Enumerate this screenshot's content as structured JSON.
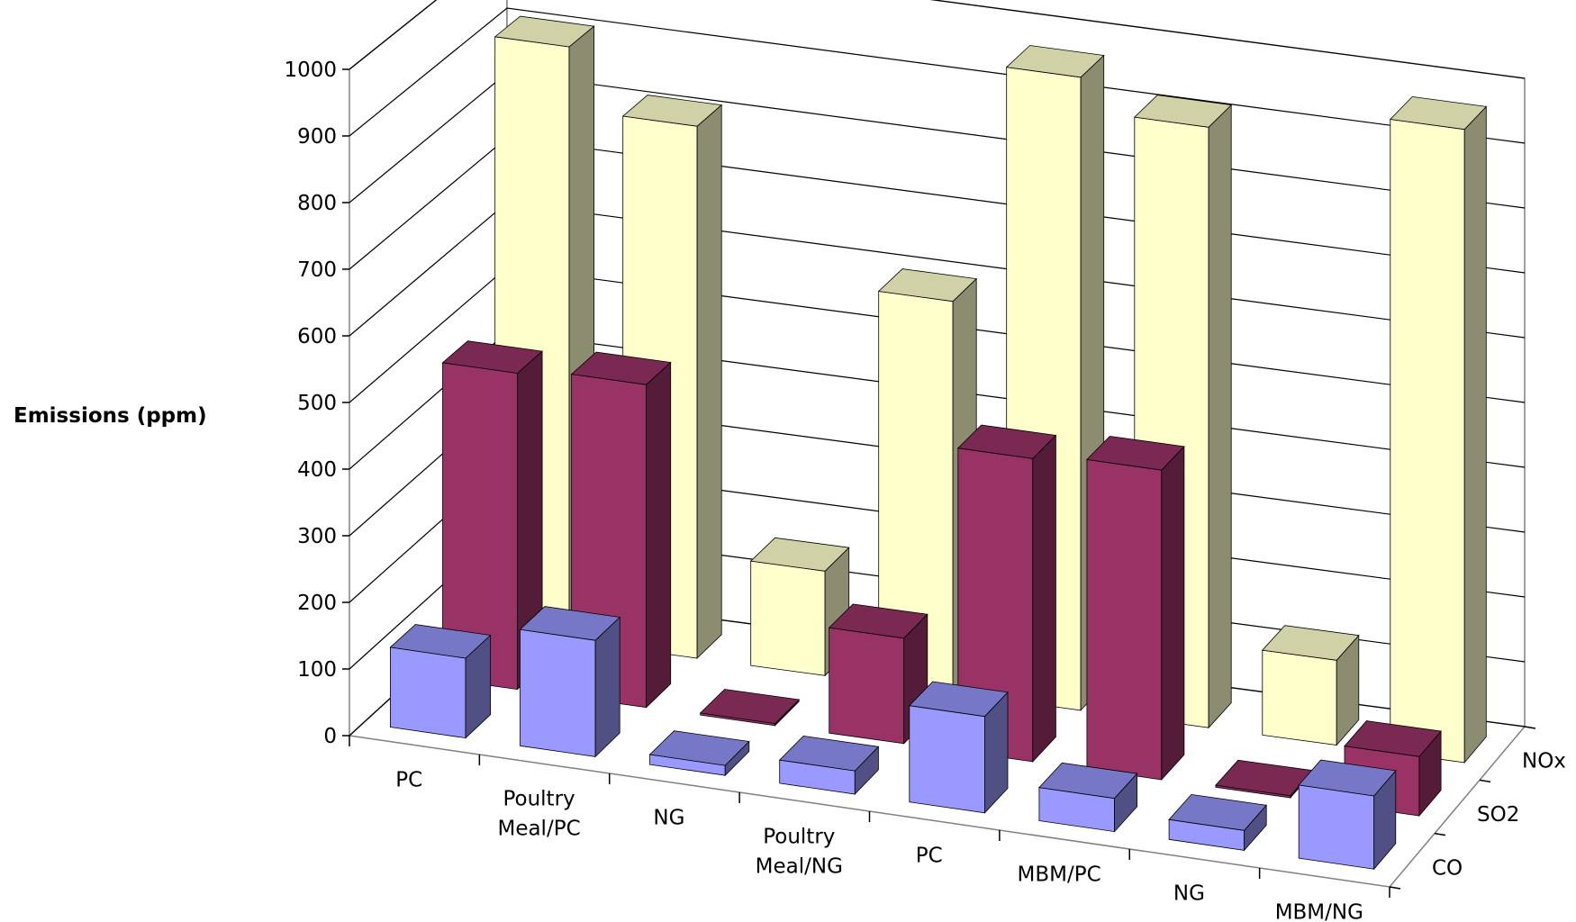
{
  "chart_data": {
    "type": "bar",
    "title": "",
    "ylabel": "Emissions (ppm)",
    "xlabel": "",
    "ylim": [
      0,
      1000
    ],
    "yticks": [
      0,
      100,
      200,
      300,
      400,
      500,
      600,
      700,
      800,
      900,
      1000
    ],
    "grid": true,
    "categories": [
      [
        "PC"
      ],
      [
        "Poultry",
        "Meal/PC"
      ],
      [
        "NG"
      ],
      [
        "Poultry",
        "Meal/NG"
      ],
      [
        "PC"
      ],
      [
        "MBM/PC"
      ],
      [
        "NG"
      ],
      [
        "MBM/NG"
      ]
    ],
    "series": [
      {
        "name": "CO",
        "values": [
          120,
          175,
          15,
          35,
          145,
          50,
          30,
          110
        ],
        "color": "#9999ff"
      },
      {
        "name": "SO2",
        "values": [
          480,
          490,
          3,
          160,
          460,
          470,
          3,
          90
        ],
        "color": "#993366"
      },
      {
        "name": "NOx",
        "values": [
          910,
          815,
          160,
          600,
          970,
          920,
          130,
          970
        ],
        "color": "#ffffcc"
      }
    ]
  }
}
